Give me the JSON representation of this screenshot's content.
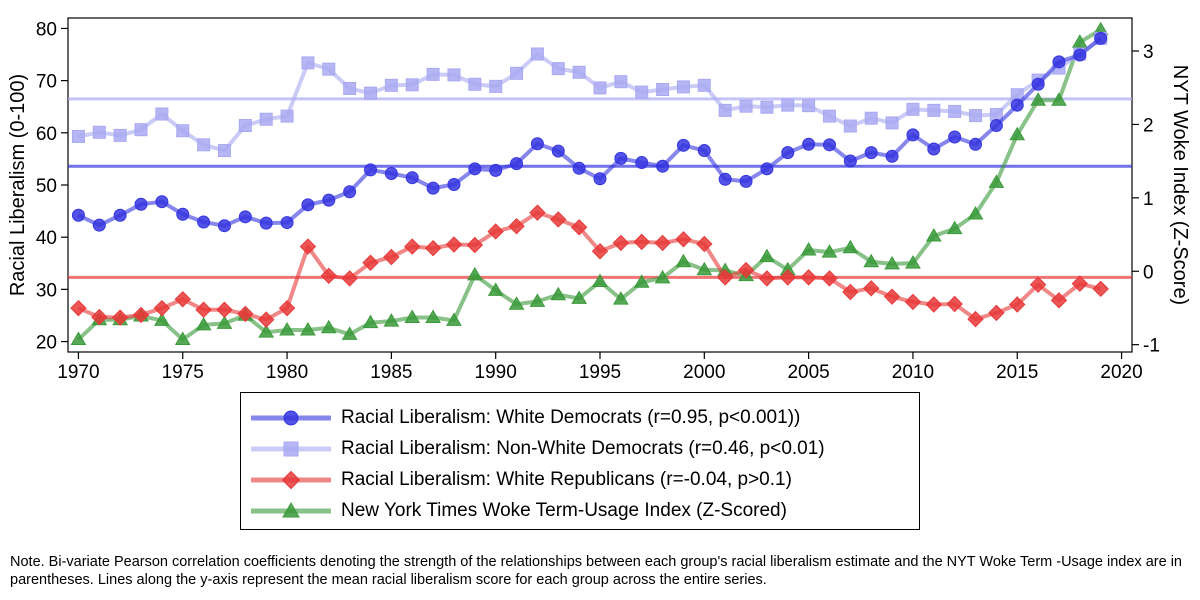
{
  "chart_data": {
    "type": "line",
    "x": [
      1970,
      1971,
      1972,
      1973,
      1974,
      1975,
      1976,
      1977,
      1978,
      1979,
      1980,
      1981,
      1982,
      1983,
      1984,
      1985,
      1986,
      1987,
      1988,
      1989,
      1990,
      1991,
      1992,
      1993,
      1994,
      1995,
      1996,
      1997,
      1998,
      1999,
      2000,
      2001,
      2002,
      2003,
      2004,
      2005,
      2006,
      2007,
      2008,
      2009,
      2010,
      2011,
      2012,
      2013,
      2014,
      2015,
      2016,
      2017,
      2018,
      2019
    ],
    "xticks": [
      1970,
      1975,
      1980,
      1985,
      1990,
      1995,
      2000,
      2005,
      2010,
      2015,
      2020
    ],
    "xlim": [
      1969.5,
      2020.5
    ],
    "ylabel": "Racial Liberalism (0-100)",
    "ylim": [
      18,
      82
    ],
    "yticks": [
      20,
      30,
      40,
      50,
      60,
      70,
      80
    ],
    "y2label": "NYT Woke Index (Z-Score)",
    "y2lim": [
      -1.1,
      3.45
    ],
    "y2ticks": [
      -1,
      0,
      1,
      2,
      3
    ],
    "series": [
      {
        "name": "Racial Liberalism: White Democrats (r=0.95, p<0.001))",
        "axis": "left",
        "marker": "circle",
        "color": "#3535e0",
        "mean": 53.6,
        "values": [
          44.2,
          42.3,
          44.2,
          46.3,
          46.8,
          44.4,
          42.9,
          42.2,
          43.9,
          42.7,
          42.8,
          46.2,
          47.1,
          48.7,
          52.9,
          52.2,
          51.4,
          49.4,
          50.1,
          53.1,
          52.8,
          54.1,
          57.9,
          56.5,
          53.2,
          51.2,
          55.1,
          54.3,
          53.6,
          57.6,
          56.6,
          51.1,
          50.7,
          53.1,
          56.2,
          57.8,
          57.7,
          54.6,
          56.2,
          55.5,
          59.6,
          56.9,
          59.2,
          57.8,
          61.4,
          65.3,
          69.3,
          73.6,
          74.9,
          78.1
        ]
      },
      {
        "name": "Racial Liberalism: Non-White Democrats (r=0.46, p<0.01)",
        "axis": "left",
        "marker": "square",
        "color": "#a9a9f2",
        "mean": 66.5,
        "values": [
          59.3,
          60.1,
          59.5,
          60.6,
          63.6,
          60.4,
          57.7,
          56.6,
          61.4,
          62.6,
          63.2,
          73.4,
          72.2,
          68.5,
          67.6,
          69.1,
          69.2,
          71.2,
          71.1,
          69.3,
          68.9,
          71.4,
          75.1,
          72.3,
          71.6,
          68.6,
          69.8,
          67.8,
          68.3,
          68.8,
          69.1,
          64.3,
          65.1,
          64.9,
          65.3,
          65.2,
          63.2,
          61.3,
          62.8,
          61.9,
          64.5,
          64.3,
          64.1,
          63.3,
          63.5,
          67.3,
          70.1,
          72.4,
          75.1,
          78.1
        ]
      },
      {
        "name": "Racial Liberalism: White Republicans (r=-0.04, p>0.1)",
        "axis": "left",
        "marker": "diamond",
        "color": "#e83838",
        "mean": 32.3,
        "values": [
          26.4,
          24.7,
          24.6,
          25.1,
          26.4,
          28.1,
          26.1,
          26.1,
          25.3,
          24.2,
          26.4,
          38.2,
          32.6,
          32.1,
          35.1,
          36.2,
          38.2,
          37.9,
          38.6,
          38.5,
          41.1,
          42.1,
          44.7,
          43.4,
          41.9,
          37.3,
          38.9,
          39.1,
          38.9,
          39.6,
          38.7,
          32.3,
          33.7,
          32.1,
          32.3,
          32.3,
          32.1,
          29.5,
          30.2,
          28.6,
          27.6,
          27.1,
          27.2,
          24.3,
          25.5,
          27.1,
          30.9,
          27.9,
          31.1,
          30.1
        ]
      },
      {
        "name": "New York Times Woke Term-Usage Index (Z-Scored)",
        "axis": "right",
        "marker": "triangle",
        "color": "#3a9a3a",
        "values": [
          -0.93,
          -0.66,
          -0.66,
          -0.61,
          -0.67,
          -0.93,
          -0.73,
          -0.71,
          -0.6,
          -0.83,
          -0.8,
          -0.8,
          -0.77,
          -0.86,
          -0.7,
          -0.68,
          -0.63,
          -0.63,
          -0.67,
          -0.05,
          -0.26,
          -0.45,
          -0.41,
          -0.32,
          -0.37,
          -0.14,
          -0.38,
          -0.15,
          -0.09,
          0.13,
          0.02,
          0.01,
          -0.06,
          0.2,
          0.02,
          0.29,
          0.26,
          0.32,
          0.13,
          0.1,
          0.11,
          0.48,
          0.58,
          0.78,
          1.21,
          1.86,
          2.33,
          2.33,
          3.12,
          3.29
        ]
      }
    ]
  },
  "note": "Note. Bi-variate Pearson correlation coefficients denoting the strength of the relationships between each group's racial liberalism estimate and the NYT Woke Term -Usage index are in parentheses. Lines along the y-axis represent the mean racial liberalism score for each group across the entire series."
}
